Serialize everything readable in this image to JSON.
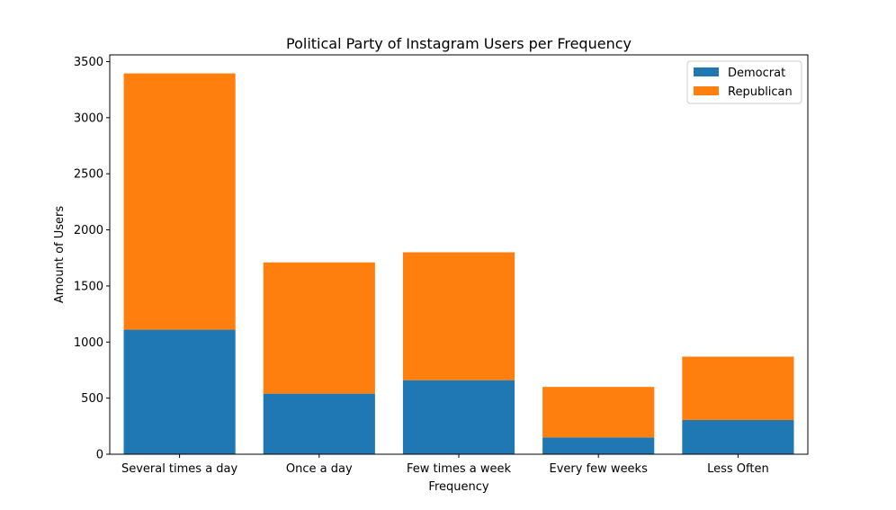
{
  "chart_data": {
    "type": "bar",
    "stacked": true,
    "title": "Political Party of Instagram Users per Frequency",
    "xlabel": "Frequency",
    "ylabel": "Amount of Users",
    "categories": [
      "Several times a day",
      "Once a day",
      "Few times a week",
      "Every few weeks",
      "Less Often"
    ],
    "series": [
      {
        "name": "Democrat",
        "values": [
          1110,
          540,
          660,
          150,
          305
        ],
        "color": "#1f77b4"
      },
      {
        "name": "Republican",
        "values": [
          2285,
          1170,
          1140,
          450,
          565
        ],
        "color": "#ff7f0e"
      }
    ],
    "ylim": [
      0,
      3560
    ],
    "yticks": [
      0,
      500,
      1000,
      1500,
      2000,
      2500,
      3000,
      3500
    ],
    "grid": false,
    "legend_position": "top-right"
  }
}
